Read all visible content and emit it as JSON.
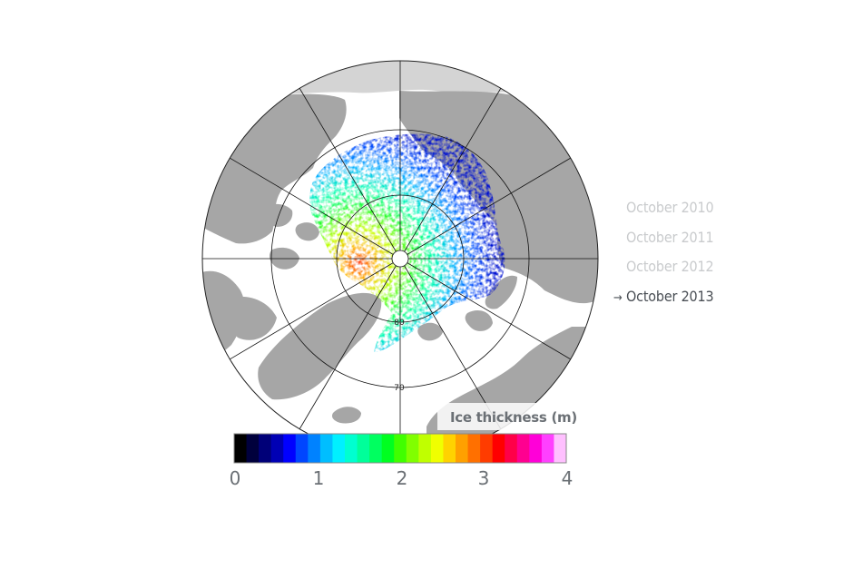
{
  "map": {
    "colorbar": {
      "title": "Ice thickness (m)",
      "min": 0,
      "max": 4,
      "ticks": [
        "0",
        "1",
        "2",
        "3",
        "4"
      ],
      "colors": [
        "#000000",
        "#00003c",
        "#000078",
        "#0000b4",
        "#0000ff",
        "#0046ff",
        "#0082ff",
        "#00beff",
        "#00f0ff",
        "#00ffd0",
        "#00ff9a",
        "#00ff60",
        "#00ff20",
        "#40ff00",
        "#80ff00",
        "#c0ff00",
        "#f0ff00",
        "#ffd200",
        "#ffa000",
        "#ff7000",
        "#ff3c00",
        "#ff0000",
        "#ff0048",
        "#ff0090",
        "#ff00d8",
        "#ff40ff",
        "#ffc0ff"
      ]
    },
    "grid_labels": [
      "80",
      "70"
    ],
    "land_color": "#a6a6a6",
    "ocean_color": "#ffffff"
  },
  "years": [
    {
      "label": "October 2010",
      "active": false
    },
    {
      "label": "October 2011",
      "active": false
    },
    {
      "label": "October 2012",
      "active": false
    },
    {
      "label": "October 2013",
      "active": true
    }
  ],
  "active_marker": "→"
}
